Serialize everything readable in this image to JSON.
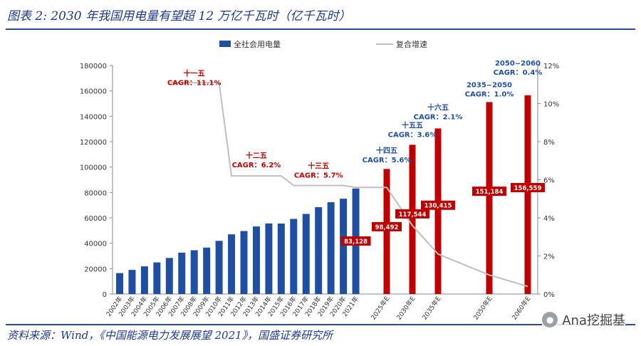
{
  "header": {
    "title": "图表 2:  2030 年我国用电量有望超 12 万亿千瓦时（亿千瓦时）"
  },
  "footer": {
    "source": "资料来源：Wind，《中国能源电力发展展望 2021》，国盛证券研究所",
    "watermark": "Ana挖掘基"
  },
  "chart_data": {
    "type": "bar",
    "title": "2030 年我国用电量有望超 12 万亿千瓦时（亿千瓦时）",
    "categories": [
      "2002年",
      "2003年",
      "2004年",
      "2005年",
      "2006年",
      "2007年",
      "2008年",
      "2009年",
      "2010年",
      "2011年",
      "2012年",
      "2013年",
      "2014年",
      "2015年",
      "2016年",
      "2017年",
      "2018年",
      "2019年",
      "2020年",
      "2021年",
      "2025年E",
      "2030年E",
      "2035年E",
      "2050年E",
      "2060年E"
    ],
    "series": [
      {
        "name": "全社会用电量",
        "axis": "left",
        "color": "#1f4fa3",
        "values": [
          16500,
          19000,
          21800,
          24900,
          28400,
          32600,
          34500,
          36600,
          41900,
          47000,
          49600,
          53200,
          55600,
          55500,
          59200,
          63100,
          68400,
          72300,
          75100,
          83128,
          98492,
          117544,
          130415,
          151184,
          156559
        ]
      },
      {
        "name": "复合增速",
        "axis": "right",
        "color": "#bfbfbf",
        "type": "line",
        "points": [
          {
            "x": "2006年",
            "y": 11.1
          },
          {
            "x": "2010年",
            "y": 11.1
          },
          {
            "x": "2011年",
            "y": 6.2
          },
          {
            "x": "2015年",
            "y": 6.2
          },
          {
            "x": "2016年",
            "y": 5.7
          },
          {
            "x": "2020年",
            "y": 5.7
          },
          {
            "x": "2021年",
            "y": 5.6
          },
          {
            "x": "2025年E",
            "y": 5.6
          },
          {
            "x": "2030年E",
            "y": 3.6
          },
          {
            "x": "2035年E",
            "y": 2.1
          },
          {
            "x": "2050年E",
            "y": 1.0
          },
          {
            "x": "2060年E",
            "y": 0.4
          }
        ]
      }
    ],
    "highlight_categories": [
      "2025年E",
      "2030年E",
      "2035年E",
      "2050年E",
      "2060年E"
    ],
    "highlight_color": "#c00000",
    "data_labels": [
      {
        "category": "2021年",
        "text": "83,128"
      },
      {
        "category": "2025年E",
        "text": "98,492"
      },
      {
        "category": "2030年E",
        "text": "117,544"
      },
      {
        "category": "2035年E",
        "text": "130,415"
      },
      {
        "category": "2050年E",
        "text": "151,184"
      },
      {
        "category": "2060年E",
        "text": "156,559"
      }
    ],
    "annotations": [
      {
        "period": "十一五",
        "cagr": "CAGR：11.1%",
        "color": "#c00000",
        "anchor": "2008年",
        "y": 172000
      },
      {
        "period": "十二五",
        "cagr": "CAGR：6.2%",
        "color": "#c00000",
        "anchor": "2013年",
        "y": 107000
      },
      {
        "period": "十三五",
        "cagr": "CAGR：5.7%",
        "color": "#c00000",
        "anchor": "2018年",
        "y": 99000
      },
      {
        "period": "十四五",
        "cagr": "CAGR：5.6%",
        "color": "#1f4fa3",
        "anchor": "2025年E",
        "y": 111000
      },
      {
        "period": "十五五",
        "cagr": "CAGR：3.6%",
        "color": "#1f4fa3",
        "anchor": "2030年E",
        "y": 131000
      },
      {
        "period": "十六五",
        "cagr": "CAGR：2.1%",
        "color": "#1f4fa3",
        "anchor": "2035年E",
        "y": 145000
      },
      {
        "period": "2035~2050",
        "cagr": "CAGR：1.0%",
        "color": "#1f4fa3",
        "anchor": "2050年E",
        "y": 163000
      },
      {
        "period": "2050~2060",
        "cagr": "CAGR：0.4%",
        "color": "#1f4fa3",
        "anchor": "2060年E",
        "y": 180000
      }
    ],
    "y_left": {
      "min": 0,
      "max": 180000,
      "ticks": [
        "0",
        "20000",
        "40000",
        "60000",
        "80000",
        "100000",
        "120000",
        "140000",
        "160000",
        "180000"
      ]
    },
    "y_right": {
      "min": 0,
      "max": 12,
      "ticks": [
        "0%",
        "2%",
        "4%",
        "6%",
        "8%",
        "10%",
        "12%"
      ]
    },
    "legend": {
      "position": "top",
      "bar_label": "全社会用电量",
      "line_label": "复合增速"
    },
    "grid": false
  }
}
